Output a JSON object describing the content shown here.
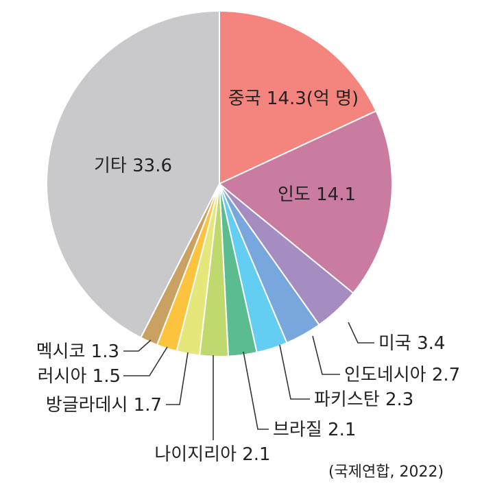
{
  "chart_data": {
    "type": "pie",
    "unit": "억 명",
    "slices": [
      {
        "name": "중국",
        "value": 14.3,
        "label": "중국 14.3(억 명)",
        "color": "#F4847E"
      },
      {
        "name": "인도",
        "value": 14.1,
        "label": "인도 14.1",
        "color": "#C97BA0"
      },
      {
        "name": "미국",
        "value": 3.4,
        "label": "미국 3.4",
        "color": "#A58CC1"
      },
      {
        "name": "인도네시아",
        "value": 2.7,
        "label": "인도네시아 2.7",
        "color": "#78A7DD"
      },
      {
        "name": "파키스탄",
        "value": 2.3,
        "label": "파키스탄 2.3",
        "color": "#63CDF2"
      },
      {
        "name": "브라질",
        "value": 2.1,
        "label": "브라질 2.1",
        "color": "#5BBD8F"
      },
      {
        "name": "나이지리아",
        "value": 2.1,
        "label": "나이지리아 2.1",
        "color": "#BFD96F"
      },
      {
        "name": "방글라데시",
        "value": 1.7,
        "label": "방글라데시 1.7",
        "color": "#E5E77A"
      },
      {
        "name": "러시아",
        "value": 1.5,
        "label": "러시아 1.5",
        "color": "#FCC33E"
      },
      {
        "name": "멕시코",
        "value": 1.3,
        "label": "멕시코 1.3",
        "color": "#C9A263"
      },
      {
        "name": "기타",
        "value": 33.6,
        "label": "기타 33.6",
        "color": "#C9C9CB"
      }
    ],
    "source": "(국제연합, 2022)"
  }
}
